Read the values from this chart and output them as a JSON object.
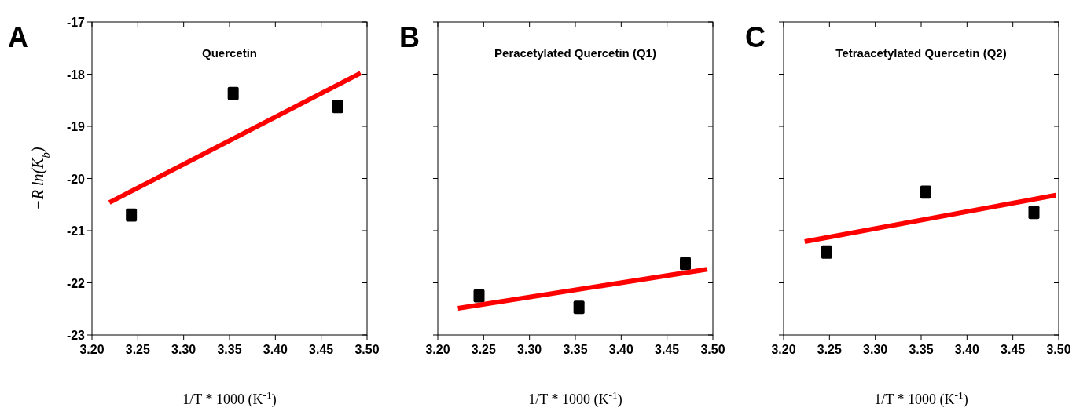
{
  "chart_data": [
    {
      "type": "scatter",
      "title": "Quercetin",
      "annotations": [
        "A"
      ],
      "ylabel": "−R ln(K$_{b}$)",
      "xlabel": "1/T * 1000 (K$^{-1}$)",
      "xlim": [
        3.2,
        3.5
      ],
      "xticks": [
        {
          "value": 3.2,
          "label": "3.20"
        },
        {
          "value": 3.25,
          "label": "3.25"
        },
        {
          "value": 3.3,
          "label": "3.30"
        },
        {
          "value": 3.35,
          "label": "3.35"
        },
        {
          "value": 3.4,
          "label": "3.40"
        },
        {
          "value": 3.45,
          "label": "3.45"
        },
        {
          "value": 3.5,
          "label": "3.50"
        }
      ],
      "ylim": [
        -23,
        -17
      ],
      "yticks": [
        -23,
        -22,
        -21,
        -20,
        -19,
        -18,
        -17
      ],
      "grid": false,
      "series": [
        {
          "type": "scatter",
          "marker": "square",
          "color": "#000000",
          "x": [
            3.243,
            3.354,
            3.468
          ],
          "values": [
            -20.7,
            -18.37,
            -18.62
          ]
        },
        {
          "type": "line",
          "marker": "none",
          "color": "#ff0000",
          "x": [
            3.219,
            3.493
          ],
          "values": [
            -20.46,
            -17.98
          ]
        }
      ]
    },
    {
      "type": "scatter",
      "title": "Peracetylated Quercetin (Q1)",
      "annotations": [
        "B"
      ],
      "xlabel": "1/T * 1000 (K$^{-1}$)",
      "xlim": [
        3.2,
        3.5
      ],
      "xticks": [
        {
          "value": 3.2,
          "label": "3.20"
        },
        {
          "value": 3.25,
          "label": "3.25"
        },
        {
          "value": 3.3,
          "label": "3.30"
        },
        {
          "value": 3.35,
          "label": "3.35"
        },
        {
          "value": 3.4,
          "label": "3.40"
        },
        {
          "value": 3.45,
          "label": "3.45"
        },
        {
          "value": 3.5,
          "label": "3.50"
        }
      ],
      "ylim": [
        -23,
        -17
      ],
      "yticks": [
        -23,
        -22,
        -21,
        -20,
        -19,
        -18,
        -17
      ],
      "tick_labels": "x",
      "grid": false,
      "series": [
        {
          "type": "scatter",
          "marker": "square",
          "color": "#000000",
          "x": [
            3.245,
            3.354,
            3.47
          ],
          "values": [
            -22.25,
            -22.47,
            -21.63
          ]
        },
        {
          "type": "line",
          "marker": "none",
          "color": "#ff0000",
          "x": [
            3.222,
            3.494
          ],
          "values": [
            -22.49,
            -21.74
          ]
        }
      ]
    },
    {
      "type": "scatter",
      "title": "Tetraacetylated Quercetin (Q2)",
      "annotations": [
        "C"
      ],
      "xlabel": "1/T * 1000 (K$^{-1}$)",
      "xlim": [
        3.2,
        3.5
      ],
      "xticks": [
        {
          "value": 3.2,
          "label": "3.20"
        },
        {
          "value": 3.25,
          "label": "3.25"
        },
        {
          "value": 3.3,
          "label": "3.30"
        },
        {
          "value": 3.35,
          "label": "3.35"
        },
        {
          "value": 3.4,
          "label": "3.40"
        },
        {
          "value": 3.45,
          "label": "3.45"
        },
        {
          "value": 3.5,
          "label": "3.50"
        }
      ],
      "ylim": [
        -23,
        -17
      ],
      "yticks": [
        -23,
        -22,
        -21,
        -20,
        -19,
        -18,
        -17
      ],
      "tick_labels": "x",
      "grid": false,
      "series": [
        {
          "type": "scatter",
          "marker": "square",
          "color": "#000000",
          "x": [
            3.247,
            3.355,
            3.473
          ],
          "values": [
            -21.41,
            -20.26,
            -20.65
          ]
        },
        {
          "type": "line",
          "marker": "none",
          "color": "#ff0000",
          "x": [
            3.223,
            3.497
          ],
          "values": [
            -21.21,
            -20.32
          ]
        }
      ]
    }
  ]
}
